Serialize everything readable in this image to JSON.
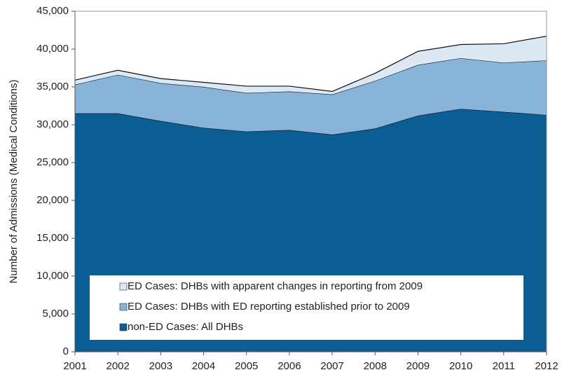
{
  "chart_data": {
    "type": "stacked_area",
    "y_label": "Number  of Admissions (Medical Conditions)",
    "x": [
      2001,
      2002,
      2003,
      2004,
      2005,
      2006,
      2007,
      2008,
      2009,
      2010,
      2011,
      2012
    ],
    "xlim": [
      2001,
      2012
    ],
    "xticks": [
      2001,
      2002,
      2003,
      2004,
      2005,
      2006,
      2007,
      2008,
      2009,
      2010,
      2011,
      2012
    ],
    "ylim": [
      0,
      45000
    ],
    "yticks": [
      0,
      {
        "value": 5000,
        "label": "5,000"
      },
      {
        "value": 10000,
        "label": "10,000"
      },
      {
        "value": 15000,
        "label": "15,000"
      },
      {
        "value": 20000,
        "label": "20,000"
      },
      {
        "value": 25000,
        "label": "25,000"
      },
      {
        "value": 30000,
        "label": "30,000"
      },
      {
        "value": 35000,
        "label": "35,000"
      },
      {
        "value": 40000,
        "label": "40,000"
      },
      {
        "value": 45000,
        "label": "45,000"
      }
    ],
    "grid": false,
    "legend_position": "lower center",
    "series": [
      {
        "name": "non-ED Cases: All DHBs",
        "color": "#0b5d93",
        "values": [
          31500,
          31500,
          30500,
          29600,
          29100,
          29300,
          28700,
          29500,
          31200,
          32100,
          31700,
          31300
        ]
      },
      {
        "name": "ED Cases: DHBs with ED reporting established prior to 2009",
        "color": "#88b4d9",
        "values": [
          3800,
          5100,
          5000,
          5400,
          5100,
          5100,
          5300,
          6300,
          6700,
          6700,
          6500,
          7200
        ]
      },
      {
        "name": "ED Cases: DHBs with apparent changes in reporting from 2009",
        "color": "#dce9f5",
        "values": [
          600,
          600,
          600,
          600,
          900,
          700,
          400,
          1000,
          1800,
          1800,
          2500,
          3200
        ]
      }
    ]
  }
}
